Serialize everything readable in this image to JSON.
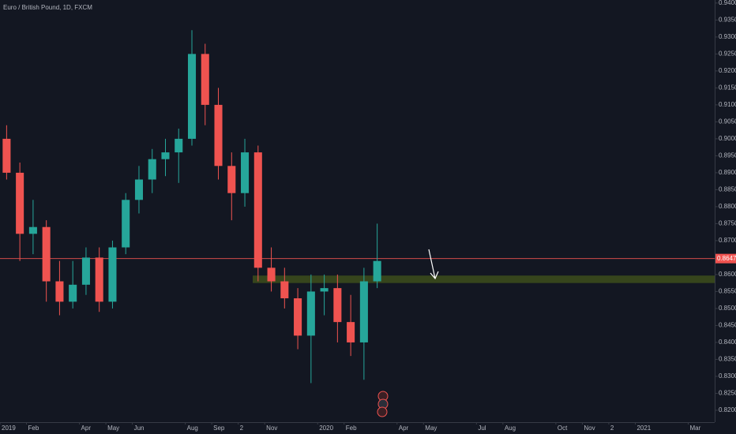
{
  "chart_data": {
    "type": "candlestick",
    "title": "Euro / British Pound, 1D, FXCM",
    "categories": [
      "2019",
      null,
      "Feb",
      null,
      null,
      null,
      "Apr",
      null,
      "May",
      null,
      "Jun",
      null,
      null,
      null,
      "Aug",
      null,
      "Sep",
      null,
      "2",
      null,
      "Nov",
      null,
      null,
      null,
      "2020",
      null,
      "Feb",
      null,
      null,
      null,
      "Apr",
      null,
      "May",
      null,
      null,
      null,
      "Jul",
      null,
      "Aug",
      null,
      null,
      null,
      "Oct",
      null,
      "Nov",
      null,
      "2",
      null,
      "2021",
      null,
      null,
      null,
      "Mar",
      null
    ],
    "open": [
      0.9,
      0.89,
      0.872,
      0.874,
      0.858,
      0.852,
      0.857,
      0.865,
      0.852,
      0.868,
      0.882,
      0.888,
      0.894,
      0.896,
      0.9,
      0.925,
      0.91,
      0.892,
      0.884,
      0.896,
      0.862,
      0.858,
      0.853,
      0.842,
      0.855,
      0.856,
      0.846,
      0.84,
      0.858,
      null,
      null,
      null,
      null,
      null,
      null,
      null,
      null,
      null,
      null,
      null,
      null,
      null,
      null,
      null,
      null,
      null,
      null,
      null,
      null,
      null,
      null,
      null,
      null,
      null
    ],
    "high": [
      0.904,
      0.893,
      0.882,
      0.876,
      0.864,
      0.864,
      0.868,
      0.868,
      0.87,
      0.884,
      0.892,
      0.897,
      0.9,
      0.903,
      0.932,
      0.928,
      0.915,
      0.896,
      0.9,
      0.898,
      0.868,
      0.862,
      0.856,
      0.86,
      0.86,
      0.86,
      0.854,
      0.862,
      0.875,
      null,
      null,
      null,
      null,
      null,
      null,
      null,
      null,
      null,
      null,
      null,
      null,
      null,
      null,
      null,
      null,
      null,
      null,
      null,
      null,
      null,
      null,
      null,
      null,
      null
    ],
    "low": [
      0.888,
      0.864,
      0.866,
      0.852,
      0.848,
      0.85,
      0.854,
      0.849,
      0.85,
      0.866,
      0.878,
      0.884,
      0.889,
      0.887,
      0.898,
      0.904,
      0.888,
      0.876,
      0.88,
      0.858,
      0.855,
      0.85,
      0.838,
      0.828,
      0.848,
      0.84,
      0.836,
      0.829,
      0.856,
      null,
      null,
      null,
      null,
      null,
      null,
      null,
      null,
      null,
      null,
      null,
      null,
      null,
      null,
      null,
      null,
      null,
      null,
      null,
      null,
      null,
      null,
      null,
      null,
      null
    ],
    "close": [
      0.89,
      0.872,
      0.874,
      0.858,
      0.852,
      0.857,
      0.865,
      0.852,
      0.868,
      0.882,
      0.888,
      0.894,
      0.896,
      0.9,
      0.925,
      0.91,
      0.892,
      0.884,
      0.896,
      0.862,
      0.858,
      0.853,
      0.842,
      0.855,
      0.856,
      0.846,
      0.84,
      0.858,
      0.864,
      null,
      null,
      null,
      null,
      null,
      null,
      null,
      null,
      null,
      null,
      null,
      null,
      null,
      null,
      null,
      null,
      null,
      null,
      null,
      null,
      null,
      null,
      null,
      null,
      null
    ],
    "up_color": "#26a69a",
    "down_color": "#ef5350",
    "last_price": 0.86471,
    "last_price_color": "#f05350",
    "support_zone": {
      "low": 0.8575,
      "high": 0.8597,
      "color": "#3b4a1c"
    },
    "ylim": [
      0.8165,
      0.9409
    ],
    "yticks": [
      {
        "value": 0.82,
        "label": "0.82000"
      },
      {
        "value": 0.825,
        "label": "0.82500"
      },
      {
        "value": 0.83,
        "label": "0.83000"
      },
      {
        "value": 0.835,
        "label": "0.83500"
      },
      {
        "value": 0.84,
        "label": "0.84000"
      },
      {
        "value": 0.845,
        "label": "0.84500"
      },
      {
        "value": 0.85,
        "label": "0.85000"
      },
      {
        "value": 0.855,
        "label": "0.85500"
      },
      {
        "value": 0.86,
        "label": "0.86000"
      },
      {
        "value": 0.865,
        "label": "0.86500"
      },
      {
        "value": 0.87,
        "label": "0.87000"
      },
      {
        "value": 0.875,
        "label": "0.87500"
      },
      {
        "value": 0.88,
        "label": "0.88000"
      },
      {
        "value": 0.885,
        "label": "0.88500"
      },
      {
        "value": 0.89,
        "label": "0.89000"
      },
      {
        "value": 0.895,
        "label": "0.89500"
      },
      {
        "value": 0.9,
        "label": "0.90000"
      },
      {
        "value": 0.905,
        "label": "0.90500"
      },
      {
        "value": 0.91,
        "label": "0.91000"
      },
      {
        "value": 0.915,
        "label": "0.91500"
      },
      {
        "value": 0.92,
        "label": "0.92000"
      },
      {
        "value": 0.925,
        "label": "0.92500"
      },
      {
        "value": 0.93,
        "label": "0.93000"
      },
      {
        "value": 0.935,
        "label": "0.93500"
      },
      {
        "value": 0.94,
        "label": "0.94000"
      }
    ],
    "grid": false
  }
}
